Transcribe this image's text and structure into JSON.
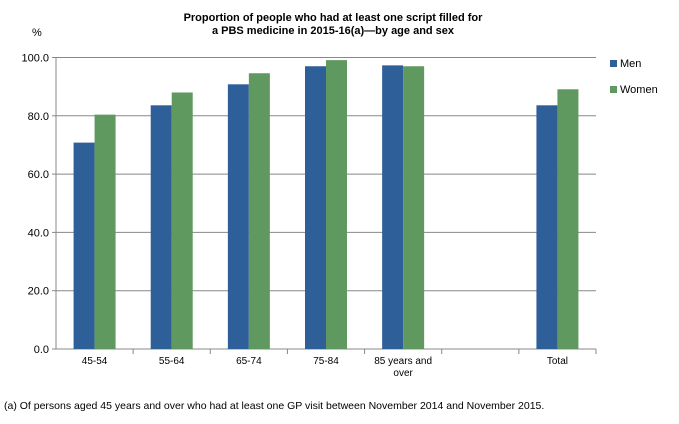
{
  "chart_data": {
    "type": "bar",
    "title_lines": [
      "Proportion of people who had at least one script filled for",
      "a PBS medicine in 2015-16(a)—by age and sex"
    ],
    "ylabel": "%",
    "xlabel": "",
    "ylim": [
      0,
      100
    ],
    "yticks": [
      "0.0",
      "20.0",
      "40.0",
      "60.0",
      "80.0",
      "100.0"
    ],
    "grid": true,
    "legend_position": "right",
    "categories": [
      [
        "45-54"
      ],
      [
        "55-64"
      ],
      [
        "65-74"
      ],
      [
        "75-84"
      ],
      [
        "85 years and",
        "over"
      ],
      [
        ""
      ],
      [
        "Total"
      ]
    ],
    "series": [
      {
        "name": "Men",
        "color": "#2E5F98",
        "values": [
          70.8,
          83.6,
          90.8,
          97.0,
          97.3,
          null,
          83.6
        ]
      },
      {
        "name": "Women",
        "color": "#5F9960",
        "values": [
          80.4,
          88.0,
          94.6,
          99.1,
          97.0,
          null,
          89.1
        ]
      }
    ],
    "footnote": "(a) Of persons aged 45 years and over who had at least one GP visit between November 2014 and November 2015."
  }
}
